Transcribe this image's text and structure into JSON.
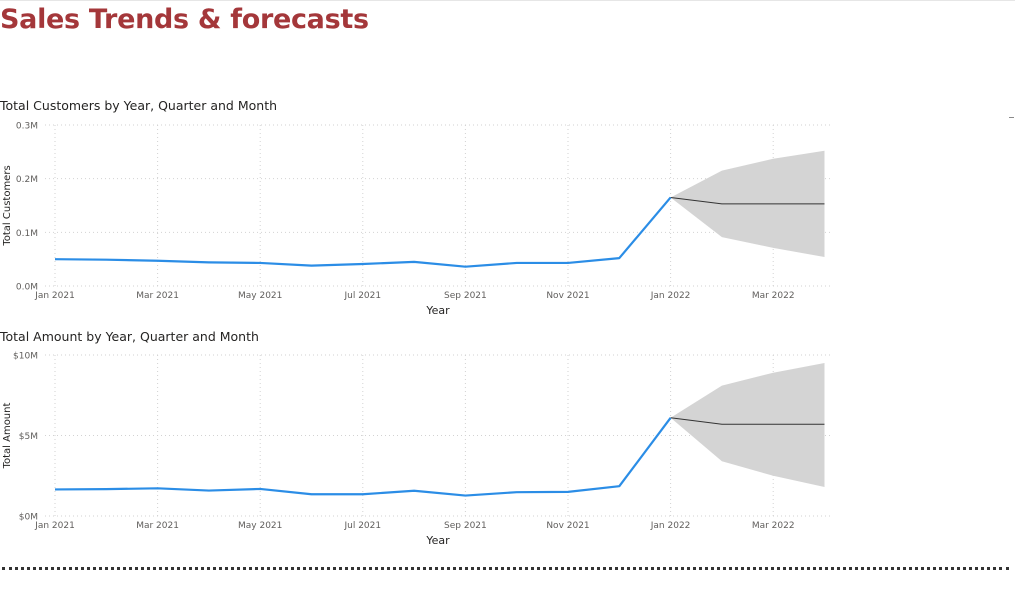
{
  "page": {
    "title": "Sales Trends & forecasts"
  },
  "colors": {
    "title": "#a4373a",
    "series": "#2b8de6",
    "forecast_line": "#333333",
    "forecast_band": "#d4d4d4",
    "grid": "#d2d2d2"
  },
  "chart_data": [
    {
      "type": "line",
      "title": "Total Customers by Year, Quarter and Month",
      "xlabel": "Year",
      "ylabel": "Total Customers",
      "x_ticks": [
        "Jan 2021",
        "Mar 2021",
        "May 2021",
        "Jul 2021",
        "Sep 2021",
        "Nov 2021",
        "Jan 2022",
        "Mar 2022"
      ],
      "y_ticks": [
        "0.0M",
        "0.1M",
        "0.2M",
        "0.3M"
      ],
      "ylim": [
        0,
        0.3
      ],
      "grid": true,
      "legend": "none",
      "series": [
        {
          "x": [
            "2021-01",
            "2021-02",
            "2021-03",
            "2021-04",
            "2021-05",
            "2021-06",
            "2021-07",
            "2021-08",
            "2021-09",
            "2021-10",
            "2021-11",
            "2021-12",
            "2022-01"
          ],
          "values": [
            0.05,
            0.049,
            0.047,
            0.044,
            0.043,
            0.038,
            0.041,
            0.045,
            0.036,
            0.043,
            0.043,
            0.052,
            0.165
          ]
        }
      ],
      "forecast": {
        "x": [
          "2022-01",
          "2022-02",
          "2022-03",
          "2022-04"
        ],
        "values": [
          0.165,
          0.153,
          0.153,
          0.153
        ],
        "upper": [
          0.165,
          0.215,
          0.237,
          0.252
        ],
        "lower": [
          0.165,
          0.091,
          0.071,
          0.054
        ]
      }
    },
    {
      "type": "line",
      "title": "Total Amount by Year, Quarter and Month",
      "xlabel": "Year",
      "ylabel": "Total Amount",
      "x_ticks": [
        "Jan 2021",
        "Mar 2021",
        "May 2021",
        "Jul 2021",
        "Sep 2021",
        "Nov 2021",
        "Jan 2022",
        "Mar 2022"
      ],
      "y_ticks": [
        "$0M",
        "$5M",
        "$10M"
      ],
      "ylim": [
        0,
        10
      ],
      "grid": true,
      "legend": "none",
      "series": [
        {
          "x": [
            "2021-01",
            "2021-02",
            "2021-03",
            "2021-04",
            "2021-05",
            "2021-06",
            "2021-07",
            "2021-08",
            "2021-09",
            "2021-10",
            "2021-11",
            "2021-12",
            "2022-01"
          ],
          "values": [
            1.65,
            1.67,
            1.72,
            1.58,
            1.68,
            1.35,
            1.35,
            1.57,
            1.27,
            1.48,
            1.5,
            1.85,
            6.1
          ]
        }
      ],
      "forecast": {
        "x": [
          "2022-01",
          "2022-02",
          "2022-03",
          "2022-04"
        ],
        "values": [
          6.1,
          5.7,
          5.7,
          5.7
        ],
        "upper": [
          6.1,
          8.1,
          8.9,
          9.5
        ],
        "lower": [
          6.1,
          3.4,
          2.5,
          1.8
        ]
      }
    }
  ]
}
